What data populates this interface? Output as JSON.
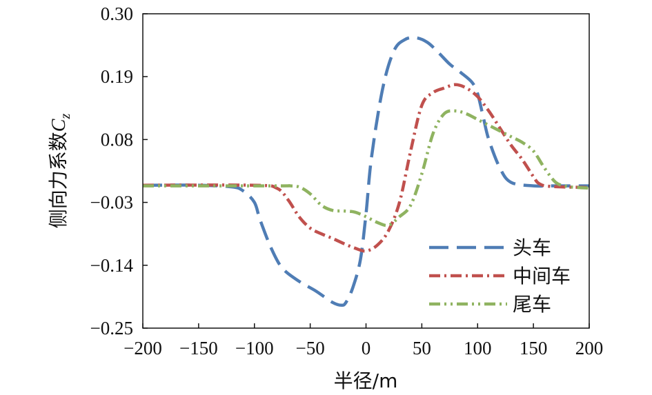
{
  "chart_data": {
    "type": "line",
    "xlabel": "半径/m",
    "ylabel_main": "侧向力系数",
    "ylabel_symbol": "C",
    "ylabel_subscript": "z",
    "xlim": [
      -200,
      200
    ],
    "ylim": [
      -0.25,
      0.3
    ],
    "xticks": [
      -200,
      -150,
      -100,
      -50,
      0,
      50,
      100,
      150,
      200
    ],
    "xtick_labels": [
      "−200",
      "−150",
      "−100",
      "−50",
      "0",
      "50",
      "100",
      "150",
      "200"
    ],
    "yticks": [
      0.3,
      0.19,
      0.08,
      -0.03,
      -0.14,
      -0.25
    ],
    "ytick_labels": [
      "0.30",
      "0.19",
      "0.08",
      "−0.03",
      "−0.14",
      "−0.25"
    ],
    "legend_position": "bottom-right",
    "series": [
      {
        "name": "头车",
        "color": "#4f7db5",
        "dash": "long-dash",
        "x": [
          -200,
          -150,
          -120,
          -110,
          -100,
          -95,
          -85,
          -75,
          -60,
          -45,
          -30,
          -22,
          -18,
          -12,
          -5,
          0,
          5,
          15,
          25,
          35,
          45,
          55,
          65,
          75,
          85,
          95,
          100,
          105,
          110,
          120,
          130,
          150,
          170,
          200
        ],
        "y": [
          0.0,
          0.0,
          -0.003,
          -0.01,
          -0.03,
          -0.06,
          -0.11,
          -0.145,
          -0.168,
          -0.185,
          -0.205,
          -0.21,
          -0.205,
          -0.18,
          -0.13,
          -0.05,
          0.05,
          0.17,
          0.235,
          0.255,
          0.258,
          0.25,
          0.232,
          0.212,
          0.197,
          0.18,
          0.16,
          0.12,
          0.08,
          0.03,
          0.005,
          -0.001,
          -0.001,
          -0.001
        ]
      },
      {
        "name": "中间车",
        "color": "#c0504d",
        "dash": "dash-dot",
        "x": [
          -200,
          -100,
          -80,
          -70,
          -60,
          -50,
          -40,
          -30,
          -20,
          -10,
          0,
          10,
          20,
          30,
          40,
          50,
          60,
          70,
          80,
          90,
          100,
          110,
          120,
          130,
          140,
          150,
          155,
          165,
          200
        ],
        "y": [
          0.0,
          0.0,
          -0.005,
          -0.025,
          -0.055,
          -0.075,
          -0.085,
          -0.093,
          -0.102,
          -0.11,
          -0.115,
          -0.105,
          -0.08,
          -0.03,
          0.06,
          0.14,
          0.162,
          0.17,
          0.176,
          0.17,
          0.155,
          0.13,
          0.1,
          0.07,
          0.045,
          0.015,
          0.003,
          -0.002,
          -0.004
        ]
      },
      {
        "name": "尾车",
        "color": "#8fb360",
        "dash": "dash-dot-dot",
        "x": [
          -200,
          -80,
          -70,
          -60,
          -50,
          -40,
          -30,
          -20,
          -10,
          0,
          10,
          20,
          30,
          40,
          50,
          60,
          70,
          80,
          90,
          100,
          110,
          120,
          130,
          140,
          150,
          160,
          170,
          180,
          190,
          200
        ],
        "y": [
          -0.001,
          -0.001,
          -0.001,
          -0.003,
          -0.015,
          -0.035,
          -0.044,
          -0.045,
          -0.047,
          -0.055,
          -0.065,
          -0.07,
          -0.055,
          -0.035,
          0.02,
          0.09,
          0.125,
          0.13,
          0.125,
          0.115,
          0.105,
          0.095,
          0.085,
          0.075,
          0.06,
          0.03,
          0.005,
          -0.002,
          -0.004,
          -0.005
        ]
      }
    ]
  }
}
